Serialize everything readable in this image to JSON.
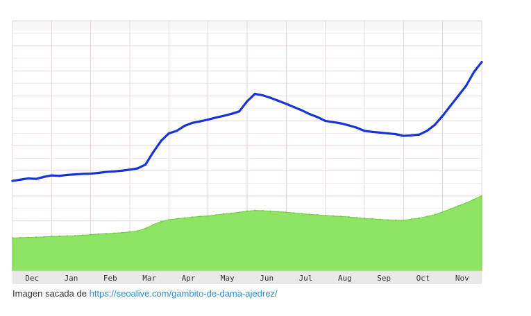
{
  "caption": {
    "text": "Imagen sacada de",
    "link_text": "https://seoalive.com/gambito-de-dama-ajedrez/"
  },
  "chart_data": {
    "type": "line",
    "grid": true,
    "x_categories": [
      "Dec",
      "Jan",
      "Feb",
      "Mar",
      "Apr",
      "May",
      "Jun",
      "Jul",
      "Aug",
      "Sep",
      "Oct",
      "Nov"
    ],
    "y_domain": [
      0,
      100
    ],
    "colors": {
      "line_series": "#1733d6",
      "area_series": "#8ee463",
      "area_stroke": "#6fc944",
      "grid_major": "#ead6d6",
      "grid_minor": "#f3e7e7",
      "background": "#ffffff",
      "x_axis_band": "#e9e9e9"
    },
    "series": [
      {
        "type": "line",
        "x": [
          0.0,
          0.2,
          0.4,
          0.6,
          0.8,
          1.0,
          1.2,
          1.4,
          1.6,
          1.8,
          2.0,
          2.2,
          2.4,
          2.6,
          2.8,
          3.0,
          3.2,
          3.4,
          3.6,
          3.8,
          4.0,
          4.2,
          4.4,
          4.6,
          4.8,
          5.0,
          5.2,
          5.4,
          5.6,
          5.8,
          6.0,
          6.2,
          6.4,
          6.6,
          6.8,
          7.0,
          7.2,
          7.4,
          7.6,
          7.8,
          8.0,
          8.2,
          8.4,
          8.6,
          8.8,
          9.0,
          9.2,
          9.4,
          9.6,
          9.8,
          10.0,
          10.2,
          10.4,
          10.6,
          10.8,
          11.0,
          11.2,
          11.4,
          11.6,
          11.8,
          12.0
        ],
        "values": [
          36.0,
          36.5,
          37.0,
          36.8,
          37.6,
          38.2,
          38.0,
          38.4,
          38.6,
          38.8,
          38.9,
          39.2,
          39.6,
          39.8,
          40.1,
          40.5,
          41.0,
          42.5,
          47.5,
          52.0,
          55.0,
          56.0,
          58.0,
          59.2,
          59.8,
          60.5,
          61.3,
          62.0,
          62.8,
          63.8,
          67.8,
          70.8,
          70.2,
          69.2,
          68.0,
          66.8,
          65.5,
          64.2,
          62.7,
          61.5,
          60.0,
          59.5,
          59.0,
          58.2,
          57.3,
          56.0,
          55.6,
          55.3,
          55.0,
          54.7,
          54.0,
          54.2,
          54.5,
          56.0,
          58.4,
          62.0,
          66.0,
          70.0,
          74.0,
          79.5,
          83.5
        ]
      },
      {
        "type": "area",
        "x": [
          0.0,
          0.2,
          0.4,
          0.6,
          0.8,
          1.0,
          1.2,
          1.4,
          1.6,
          1.8,
          2.0,
          2.2,
          2.4,
          2.6,
          2.8,
          3.0,
          3.2,
          3.4,
          3.6,
          3.8,
          4.0,
          4.2,
          4.4,
          4.6,
          4.8,
          5.0,
          5.2,
          5.4,
          5.6,
          5.8,
          6.0,
          6.2,
          6.4,
          6.6,
          6.8,
          7.0,
          7.2,
          7.4,
          7.6,
          7.8,
          8.0,
          8.2,
          8.4,
          8.6,
          8.8,
          9.0,
          9.2,
          9.4,
          9.6,
          9.8,
          10.0,
          10.2,
          10.4,
          10.6,
          10.8,
          11.0,
          11.2,
          11.4,
          11.6,
          11.8,
          12.0
        ],
        "values": [
          13.2,
          13.3,
          13.4,
          13.5,
          13.6,
          13.8,
          13.9,
          14.0,
          14.1,
          14.3,
          14.5,
          14.7,
          14.9,
          15.1,
          15.3,
          15.6,
          16.0,
          17.0,
          18.5,
          19.7,
          20.5,
          20.8,
          21.2,
          21.5,
          21.8,
          22.0,
          22.4,
          22.8,
          23.1,
          23.5,
          23.9,
          24.2,
          24.1,
          23.9,
          23.7,
          23.5,
          23.2,
          22.9,
          22.6,
          22.4,
          22.2,
          22.0,
          21.8,
          21.6,
          21.3,
          21.0,
          20.8,
          20.6,
          20.4,
          20.3,
          20.3,
          20.7,
          21.1,
          21.8,
          22.5,
          23.6,
          24.8,
          26.0,
          27.2,
          28.6,
          30.0
        ]
      }
    ]
  }
}
